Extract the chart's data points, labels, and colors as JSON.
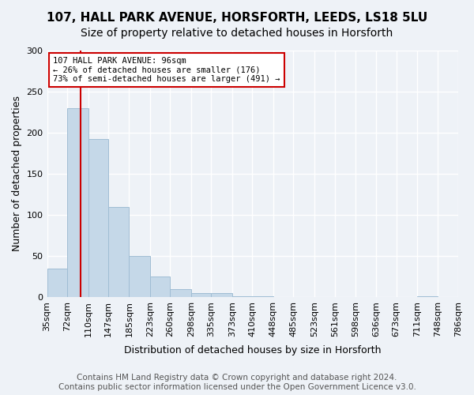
{
  "title_line1": "107, HALL PARK AVENUE, HORSFORTH, LEEDS, LS18 5LU",
  "title_line2": "Size of property relative to detached houses in Horsforth",
  "xlabel": "Distribution of detached houses by size in Horsforth",
  "ylabel": "Number of detached properties",
  "footer_line1": "Contains HM Land Registry data © Crown copyright and database right 2024.",
  "footer_line2": "Contains public sector information licensed under the Open Government Licence v3.0.",
  "annotation_line1": "107 HALL PARK AVENUE: 96sqm",
  "annotation_line2": "← 26% of detached houses are smaller (176)",
  "annotation_line3": "73% of semi-detached houses are larger (491) →",
  "property_size_sqm": 96,
  "bin_edges": [
    35,
    72,
    110,
    147,
    185,
    223,
    260,
    298,
    335,
    373,
    410,
    448,
    485,
    523,
    561,
    598,
    636,
    673,
    711,
    748,
    786
  ],
  "bin_labels": [
    "35sqm",
    "72sqm",
    "110sqm",
    "147sqm",
    "185sqm",
    "223sqm",
    "260sqm",
    "298sqm",
    "335sqm",
    "373sqm",
    "410sqm",
    "448sqm",
    "485sqm",
    "523sqm",
    "561sqm",
    "598sqm",
    "636sqm",
    "673sqm",
    "711sqm",
    "748sqm",
    "786sqm"
  ],
  "bar_heights": [
    35,
    230,
    192,
    110,
    50,
    25,
    10,
    5,
    5,
    1,
    1,
    0,
    0,
    0,
    0,
    0,
    0,
    0,
    1,
    0
  ],
  "bar_color": "#c5d8e8",
  "bar_edge_color": "#a0bdd4",
  "vline_color": "#cc0000",
  "vline_x": 96,
  "annotation_box_color": "#ffffff",
  "annotation_box_edge": "#cc0000",
  "background_color": "#eef2f7",
  "ylim": [
    0,
    300
  ],
  "yticks": [
    0,
    50,
    100,
    150,
    200,
    250,
    300
  ],
  "grid_color": "#ffffff",
  "title_fontsize": 11,
  "subtitle_fontsize": 10,
  "axis_label_fontsize": 9,
  "tick_fontsize": 8,
  "footer_fontsize": 7.5
}
